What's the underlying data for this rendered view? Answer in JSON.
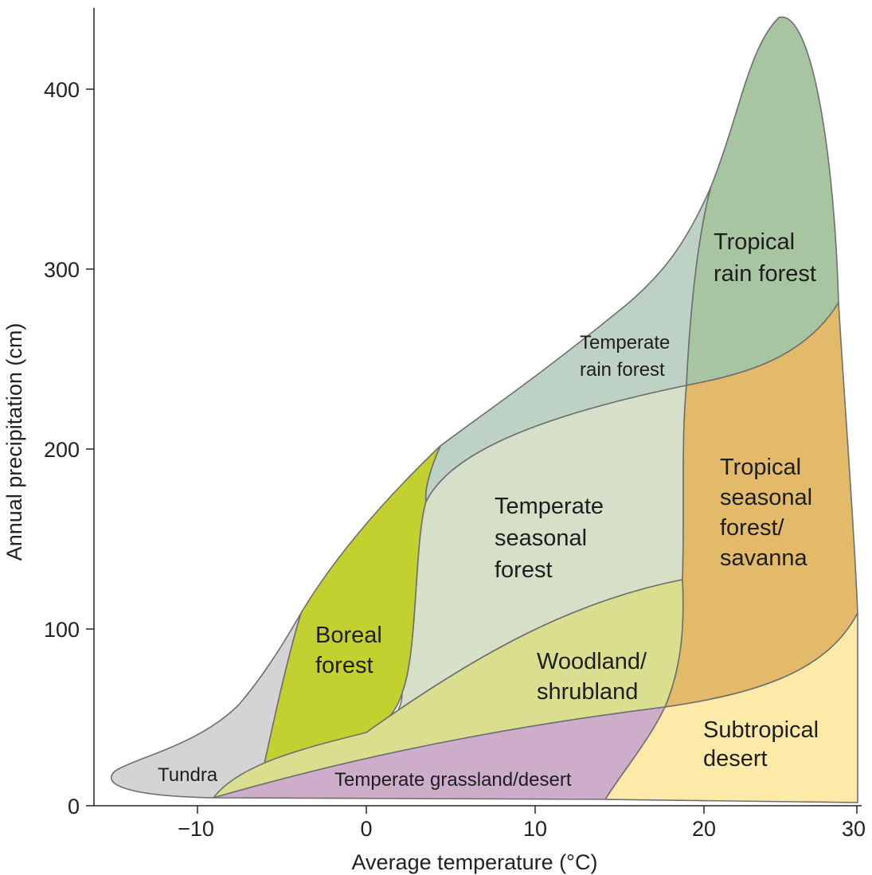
{
  "axes": {
    "xlabel": "Average temperature (°C)",
    "ylabel": "Annual precipitation (cm)",
    "x_ticks": [
      "−10",
      "0",
      "10",
      "20",
      "30"
    ],
    "y_ticks": [
      "0",
      "100",
      "200",
      "300",
      "400"
    ]
  },
  "biomes": [
    {
      "id": "tundra",
      "lines": [
        "Tundra"
      ],
      "color": "#d4d4d6"
    },
    {
      "id": "boreal",
      "lines": [
        "Boreal",
        "forest"
      ],
      "color": "#c3d130"
    },
    {
      "id": "temperate-seasonal",
      "lines": [
        "Temperate",
        "seasonal",
        "forest"
      ],
      "color": "#d6dfc8"
    },
    {
      "id": "temperate-rain",
      "lines": [
        "Temperate",
        "rain forest"
      ],
      "color": "#bdd2c4"
    },
    {
      "id": "tropical-rain",
      "lines": [
        "Tropical",
        "rain forest"
      ],
      "color": "#a8c5a1"
    },
    {
      "id": "tropical-seasonal",
      "lines": [
        "Tropical",
        "seasonal",
        "forest/",
        "savanna"
      ],
      "color": "#e2ba69"
    },
    {
      "id": "woodland",
      "lines": [
        "Woodland/",
        "shrubland"
      ],
      "color": "#d9df8f"
    },
    {
      "id": "grassland",
      "lines": [
        "Temperate grassland/desert"
      ],
      "color": "#ccaecb"
    },
    {
      "id": "subtropical-desert",
      "lines": [
        "Subtropical",
        "desert"
      ],
      "color": "#fdeaa8"
    }
  ]
}
